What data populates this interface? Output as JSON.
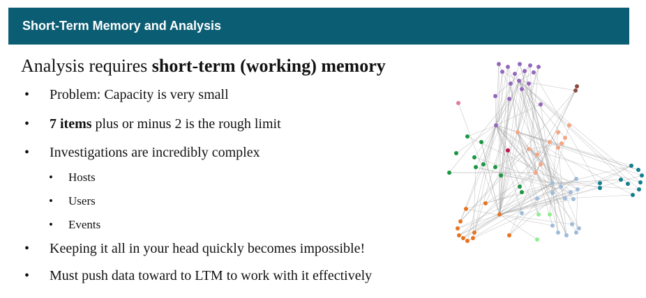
{
  "slide": {
    "title": "Short-Term Memory and Analysis",
    "heading_prefix": "Analysis requires ",
    "heading_bold": "short-term (working) memory",
    "bullets": [
      {
        "text": "Problem: Capacity is very small"
      },
      {
        "bold": "7 items",
        "text": " plus or minus 2 is the rough limit"
      },
      {
        "text": "Investigations are incredibly complex"
      },
      {
        "text": "Keeping it all in your head quickly becomes impossible!"
      },
      {
        "text": "Must push data toward to LTM to work with it effectively"
      }
    ],
    "sub_bullets": [
      "Hosts",
      "Users",
      "Events"
    ],
    "bullet_glyph": "•"
  },
  "graph": {
    "colors": {
      "purple": "#9467bd",
      "orange": "#e8731f",
      "salmon": "#f4a582",
      "green": "#1a9641",
      "teal": "#127f8c",
      "lightblue": "#9ebcda",
      "lightgreen": "#90ee90",
      "pink": "#e07a9f",
      "brown": "#8c4a3c",
      "crimson": "#c0104c",
      "edge": "#9a9a9a"
    }
  }
}
